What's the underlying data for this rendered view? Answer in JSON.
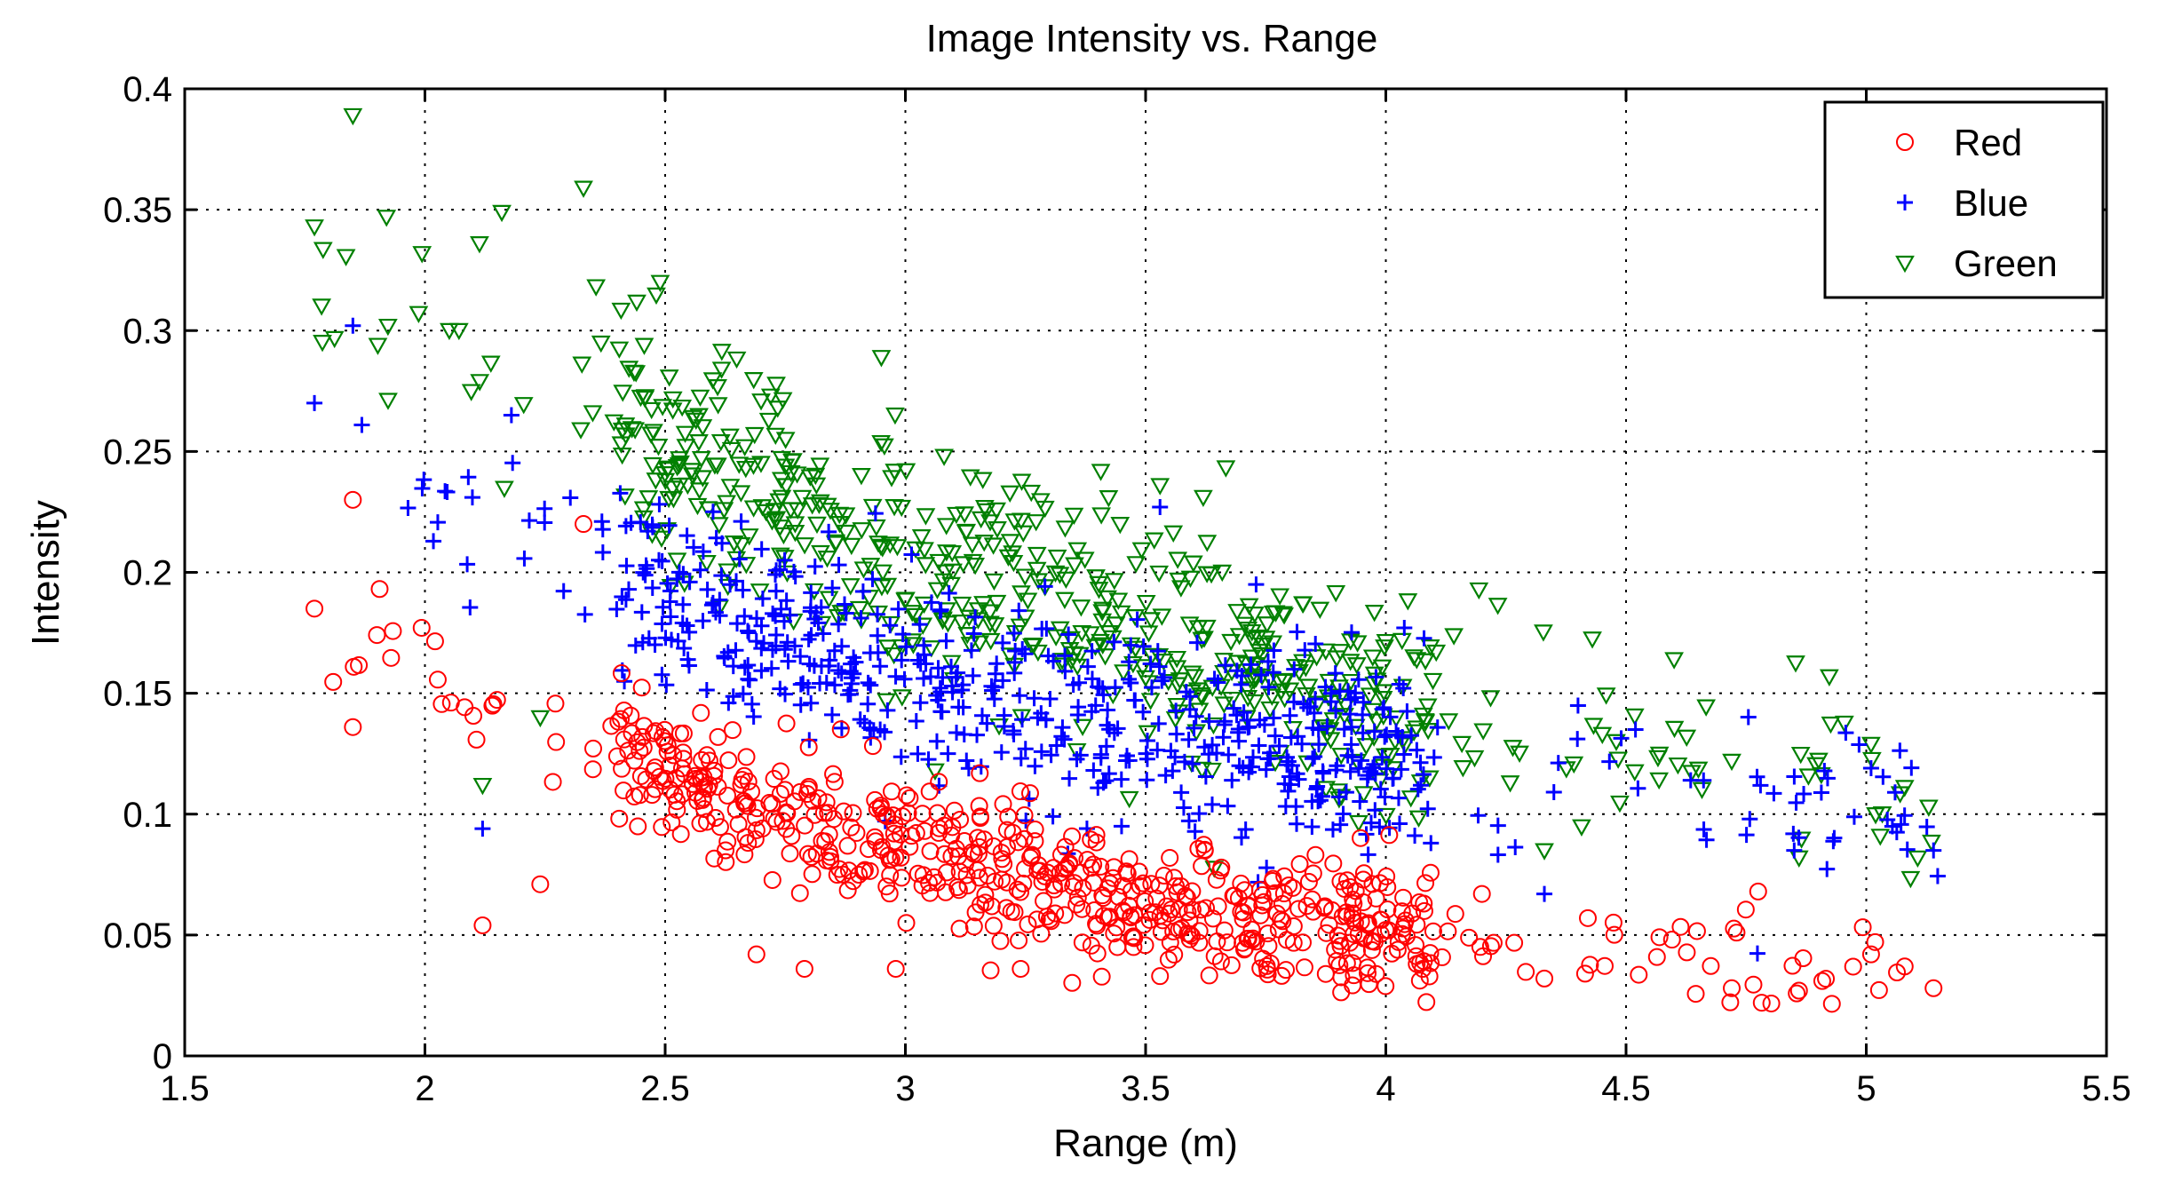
{
  "chart_data": {
    "type": "scatter",
    "title": "Image Intensity vs. Range",
    "xlabel": "Range (m)",
    "ylabel": "Intensity",
    "xlim": [
      1.5,
      5.5
    ],
    "ylim": [
      0,
      0.4
    ],
    "xticks": [
      1.5,
      2,
      2.5,
      3,
      3.5,
      4,
      4.5,
      5,
      5.5
    ],
    "xtick_labels": [
      "1.5",
      "2",
      "2.5",
      "3",
      "3.5",
      "4",
      "4.5",
      "5",
      "5.5"
    ],
    "yticks": [
      0,
      0.05,
      0.1,
      0.15,
      0.2,
      0.25,
      0.3,
      0.35,
      0.4
    ],
    "ytick_labels": [
      "0",
      "0.05",
      "0.1",
      "0.15",
      "0.2",
      "0.25",
      "0.3",
      "0.35",
      "0.4"
    ],
    "grid": true,
    "legend_position": "top-right",
    "series": [
      {
        "name": "Red",
        "marker": "circle",
        "color": "#ff0000",
        "trend": [
          [
            1.8,
            0.17
          ],
          [
            2.2,
            0.145
          ],
          [
            2.5,
            0.118
          ],
          [
            2.75,
            0.1
          ],
          [
            3.0,
            0.085
          ],
          [
            3.25,
            0.074
          ],
          [
            3.5,
            0.065
          ],
          [
            3.75,
            0.057
          ],
          [
            4.0,
            0.051
          ],
          [
            4.25,
            0.047
          ],
          [
            4.5,
            0.043
          ],
          [
            4.75,
            0.039
          ],
          [
            5.15,
            0.034
          ]
        ],
        "count": 650,
        "spread": 0.014,
        "x_range": [
          1.78,
          5.15
        ],
        "points": [
          [
            1.77,
            0.185
          ],
          [
            1.85,
            0.23
          ],
          [
            1.85,
            0.136
          ],
          [
            2.12,
            0.054
          ],
          [
            2.24,
            0.071
          ],
          [
            2.33,
            0.22
          ],
          [
            2.69,
            0.042
          ],
          [
            2.79,
            0.036
          ],
          [
            2.98,
            0.036
          ],
          [
            3.24,
            0.036
          ],
          [
            3.53,
            0.033
          ],
          [
            4.72,
            0.028
          ],
          [
            4.86,
            0.027
          ],
          [
            5.14,
            0.028
          ],
          [
            5.01,
            0.042
          ],
          [
            5.08,
            0.037
          ],
          [
            4.73,
            0.051
          ],
          [
            4.2,
            0.067
          ],
          [
            3.84,
            0.072
          ],
          [
            4.33,
            0.032
          ]
        ]
      },
      {
        "name": "Blue",
        "marker": "plus",
        "color": "#0000ff",
        "trend": [
          [
            1.85,
            0.245
          ],
          [
            2.2,
            0.215
          ],
          [
            2.5,
            0.19
          ],
          [
            2.75,
            0.172
          ],
          [
            3.0,
            0.158
          ],
          [
            3.25,
            0.147
          ],
          [
            3.5,
            0.138
          ],
          [
            3.75,
            0.13
          ],
          [
            4.0,
            0.124
          ],
          [
            4.25,
            0.118
          ],
          [
            4.5,
            0.112
          ],
          [
            4.75,
            0.106
          ],
          [
            5.15,
            0.1
          ]
        ],
        "count": 620,
        "spread": 0.02,
        "x_range": [
          1.85,
          5.15
        ],
        "points": [
          [
            1.77,
            0.27
          ],
          [
            1.85,
            0.302
          ],
          [
            2.12,
            0.094
          ],
          [
            3.53,
            0.227
          ],
          [
            3.73,
            0.195
          ],
          [
            4.85,
            0.085
          ],
          [
            5.14,
            0.085
          ],
          [
            5.01,
            0.119
          ],
          [
            5.06,
            0.109
          ],
          [
            4.33,
            0.067
          ],
          [
            3.45,
            0.095
          ],
          [
            2.18,
            0.265
          ]
        ]
      },
      {
        "name": "Green",
        "marker": "triangle-down",
        "color": "#008000",
        "trend": [
          [
            1.85,
            0.31
          ],
          [
            2.2,
            0.285
          ],
          [
            2.5,
            0.255
          ],
          [
            2.75,
            0.228
          ],
          [
            3.0,
            0.205
          ],
          [
            3.25,
            0.188
          ],
          [
            3.5,
            0.172
          ],
          [
            3.75,
            0.158
          ],
          [
            4.0,
            0.145
          ],
          [
            4.25,
            0.135
          ],
          [
            4.5,
            0.127
          ],
          [
            4.75,
            0.115
          ],
          [
            5.15,
            0.105
          ]
        ],
        "count": 620,
        "spread": 0.025,
        "x_range": [
          1.78,
          5.15
        ],
        "points": [
          [
            1.77,
            0.343
          ],
          [
            1.85,
            0.389
          ],
          [
            1.92,
            0.347
          ],
          [
            2.16,
            0.349
          ],
          [
            2.33,
            0.359
          ],
          [
            2.95,
            0.289
          ],
          [
            3.53,
            0.236
          ],
          [
            4.6,
            0.164
          ],
          [
            4.86,
            0.082
          ],
          [
            5.01,
            0.129
          ],
          [
            5.13,
            0.103
          ],
          [
            2.12,
            0.112
          ],
          [
            2.24,
            0.14
          ],
          [
            4.72,
            0.122
          ],
          [
            4.33,
            0.085
          ]
        ]
      }
    ]
  }
}
